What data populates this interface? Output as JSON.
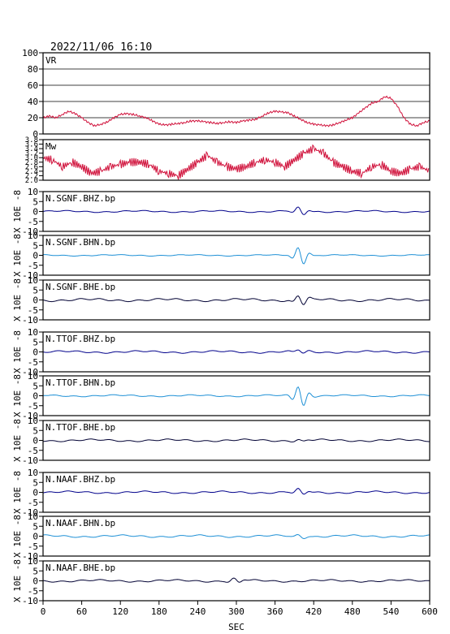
{
  "title": "2022/11/06 16:10",
  "x_axis": {
    "label": "SEC",
    "ticks": [
      "0",
      "60",
      "120",
      "180",
      "240",
      "300",
      "360",
      "420",
      "480",
      "540",
      "600"
    ],
    "range": [
      0,
      600
    ]
  },
  "colors": {
    "frame": "#000000",
    "vr_mw": "#d0103a",
    "bhz": "#00008b",
    "bhn": "#1e90d6",
    "bhe": "#000033",
    "grid": "#000000"
  },
  "chart_data": [
    {
      "type": "line",
      "id": "vr",
      "label": "VR",
      "ylim": [
        0,
        100
      ],
      "ytick_labels": [
        "0",
        "20",
        "40",
        "60",
        "80",
        "100"
      ],
      "grid": true,
      "x": [
        0,
        10,
        20,
        30,
        40,
        50,
        60,
        70,
        80,
        90,
        100,
        110,
        120,
        130,
        140,
        150,
        160,
        170,
        180,
        190,
        200,
        210,
        220,
        230,
        240,
        250,
        260,
        270,
        280,
        290,
        300,
        310,
        320,
        330,
        340,
        350,
        360,
        370,
        380,
        390,
        400,
        410,
        420,
        430,
        440,
        450,
        460,
        470,
        480,
        490,
        500,
        510,
        520,
        530,
        540,
        550,
        560,
        570,
        580,
        590,
        600
      ],
      "y": [
        20,
        22,
        20,
        24,
        28,
        25,
        20,
        14,
        10,
        12,
        15,
        20,
        24,
        25,
        24,
        22,
        20,
        16,
        12,
        11,
        12,
        13,
        14,
        16,
        16,
        15,
        14,
        13,
        14,
        15,
        14,
        16,
        17,
        18,
        22,
        26,
        28,
        27,
        26,
        22,
        18,
        14,
        12,
        11,
        10,
        11,
        14,
        17,
        20,
        26,
        32,
        38,
        40,
        46,
        44,
        34,
        20,
        12,
        10,
        14,
        16
      ]
    },
    {
      "type": "line",
      "id": "mw",
      "label": "Mw",
      "ylim": [
        2.0,
        3.8
      ],
      "ytick_labels": [
        "2.0",
        "2.2",
        "2.4",
        "2.6",
        "2.8",
        "3.0",
        "3.2",
        "3.4",
        "3.6",
        "3.8"
      ],
      "grid": false,
      "x": [
        0,
        15,
        30,
        45,
        60,
        75,
        90,
        105,
        120,
        135,
        150,
        165,
        180,
        195,
        210,
        225,
        240,
        255,
        270,
        285,
        300,
        315,
        330,
        345,
        360,
        375,
        390,
        405,
        420,
        435,
        450,
        465,
        480,
        495,
        510,
        525,
        540,
        555,
        570,
        585,
        600
      ],
      "y": [
        3.0,
        2.9,
        2.6,
        2.8,
        2.6,
        2.3,
        2.4,
        2.6,
        2.7,
        2.8,
        2.8,
        2.7,
        2.4,
        2.3,
        2.2,
        2.5,
        2.8,
        3.1,
        2.8,
        2.6,
        2.5,
        2.6,
        2.8,
        2.9,
        2.8,
        2.6,
        2.9,
        3.2,
        3.4,
        3.2,
        2.8,
        2.6,
        2.4,
        2.3,
        2.6,
        2.7,
        2.4,
        2.3,
        2.5,
        2.6,
        2.4
      ]
    }
  ],
  "waveforms": [
    {
      "label": "N.SGNF.BHZ.bp",
      "color": "bhz",
      "peak_sec": 400,
      "peak_amp": 2.0,
      "noise": 0.4
    },
    {
      "label": "N.SGNF.BHN.bp",
      "color": "bhn",
      "peak_sec": 400,
      "peak_amp": 4.5,
      "noise": 0.3
    },
    {
      "label": "N.SGNF.BHE.bp",
      "color": "bhe",
      "peak_sec": 400,
      "peak_amp": 2.5,
      "noise": 0.6
    },
    {
      "label": "N.TTOF.BHZ.bp",
      "color": "bhz",
      "peak_sec": 400,
      "peak_amp": 1.0,
      "noise": 0.5
    },
    {
      "label": "N.TTOF.BHN.bp",
      "color": "bhn",
      "peak_sec": 400,
      "peak_amp": 5.5,
      "noise": 0.4
    },
    {
      "label": "N.TTOF.BHE.bp",
      "color": "bhe",
      "peak_sec": 400,
      "peak_amp": 0.6,
      "noise": 0.5
    },
    {
      "label": "N.NAAF.BHZ.bp",
      "color": "bhz",
      "peak_sec": 400,
      "peak_amp": 1.5,
      "noise": 0.5
    },
    {
      "label": "N.NAAF.BHN.bp",
      "color": "bhn",
      "peak_sec": 400,
      "peak_amp": 0.8,
      "noise": 0.5
    },
    {
      "label": "N.NAAF.BHE.bp",
      "color": "bhe",
      "peak_sec": 300,
      "peak_amp": 1.2,
      "noise": 0.5
    }
  ],
  "waveform_axis": {
    "ylim": [
      -10,
      10
    ],
    "ytick_labels": [
      "-10",
      "-5",
      "0",
      "5",
      "10"
    ],
    "scale_label": "X 10E -8"
  }
}
